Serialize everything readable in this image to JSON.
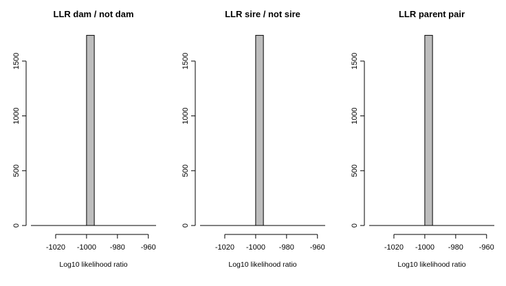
{
  "chart_data": [
    {
      "type": "bar",
      "title": "LLR dam / not dam",
      "xlabel": "Log10 likelihood ratio",
      "ylabel": "",
      "xlim": [
        -1036,
        -955
      ],
      "ylim": [
        0,
        1750
      ],
      "x_ticks": [
        -1020,
        -1000,
        -980,
        -960
      ],
      "x_tick_labels": [
        "-1020",
        "-1000",
        "-980",
        "-960"
      ],
      "y_ticks": [
        0,
        500,
        1000,
        1500
      ],
      "y_tick_labels": [
        "0",
        "500",
        "1000",
        "1500"
      ],
      "bins": [
        {
          "start": -1000,
          "end": -995,
          "count": 1735
        }
      ],
      "bar_color": "#bebebe",
      "grid": false
    },
    {
      "type": "bar",
      "title": "LLR sire / not sire",
      "xlabel": "Log10 likelihood ratio",
      "ylabel": "",
      "xlim": [
        -1036,
        -955
      ],
      "ylim": [
        0,
        1750
      ],
      "x_ticks": [
        -1020,
        -1000,
        -980,
        -960
      ],
      "x_tick_labels": [
        "-1020",
        "-1000",
        "-980",
        "-960"
      ],
      "y_ticks": [
        0,
        500,
        1000,
        1500
      ],
      "y_tick_labels": [
        "0",
        "500",
        "1000",
        "1500"
      ],
      "bins": [
        {
          "start": -1000,
          "end": -995,
          "count": 1735
        }
      ],
      "bar_color": "#bebebe",
      "grid": false
    },
    {
      "type": "bar",
      "title": "LLR parent pair",
      "xlabel": "Log10 likelihood ratio",
      "ylabel": "",
      "xlim": [
        -1036,
        -955
      ],
      "ylim": [
        0,
        1750
      ],
      "x_ticks": [
        -1020,
        -1000,
        -980,
        -960
      ],
      "x_tick_labels": [
        "-1020",
        "-1000",
        "-980",
        "-960"
      ],
      "y_ticks": [
        0,
        500,
        1000,
        1500
      ],
      "y_tick_labels": [
        "0",
        "500",
        "1000",
        "1500"
      ],
      "bins": [
        {
          "start": -1000,
          "end": -995,
          "count": 1735
        }
      ],
      "bar_color": "#bebebe",
      "grid": false
    }
  ]
}
